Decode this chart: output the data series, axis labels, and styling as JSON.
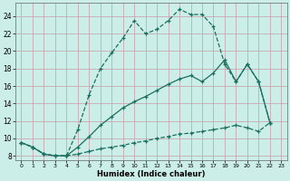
{
  "xlabel": "Humidex (Indice chaleur)",
  "bg_color": "#cceee8",
  "grid_color": "#c8a8b0",
  "line_color": "#1a7060",
  "xlim": [
    -0.5,
    23.5
  ],
  "ylim": [
    7.5,
    25.5
  ],
  "xticks": [
    0,
    1,
    2,
    3,
    4,
    5,
    6,
    7,
    8,
    9,
    10,
    11,
    12,
    13,
    14,
    15,
    16,
    17,
    18,
    19,
    20,
    21,
    22,
    23
  ],
  "yticks": [
    8,
    10,
    12,
    14,
    16,
    18,
    20,
    22,
    24
  ],
  "line1_x": [
    0,
    1,
    2,
    3,
    4,
    5,
    6,
    7,
    8,
    9,
    10,
    11,
    12,
    13,
    14,
    15,
    16,
    17,
    18,
    19,
    20,
    21,
    22
  ],
  "line1_y": [
    9.5,
    9.0,
    8.2,
    8.0,
    8.0,
    11.0,
    15.0,
    18.0,
    19.8,
    21.5,
    23.5,
    22.0,
    22.5,
    23.5,
    24.8,
    24.2,
    24.2,
    22.8,
    18.5,
    16.5,
    18.5,
    16.5,
    11.8
  ],
  "line2_x": [
    0,
    1,
    2,
    3,
    4,
    5,
    6,
    7,
    8,
    9,
    10,
    11,
    12,
    13,
    14,
    15,
    16,
    17,
    18,
    19,
    20,
    21,
    22
  ],
  "line2_y": [
    9.5,
    9.0,
    8.2,
    8.0,
    8.0,
    9.0,
    10.2,
    11.5,
    12.5,
    13.5,
    14.2,
    14.8,
    15.5,
    16.2,
    16.8,
    17.2,
    16.5,
    17.5,
    19.0,
    16.5,
    18.5,
    16.5,
    11.8
  ],
  "line3_x": [
    0,
    1,
    2,
    3,
    4,
    5,
    6,
    7,
    8,
    9,
    10,
    11,
    12,
    13,
    14,
    15,
    16,
    17,
    18,
    19,
    20,
    21,
    22
  ],
  "line3_y": [
    9.5,
    9.0,
    8.2,
    8.0,
    8.0,
    8.2,
    8.5,
    8.8,
    9.0,
    9.2,
    9.5,
    9.7,
    10.0,
    10.2,
    10.5,
    10.6,
    10.8,
    11.0,
    11.2,
    11.5,
    11.2,
    10.8,
    11.8
  ]
}
